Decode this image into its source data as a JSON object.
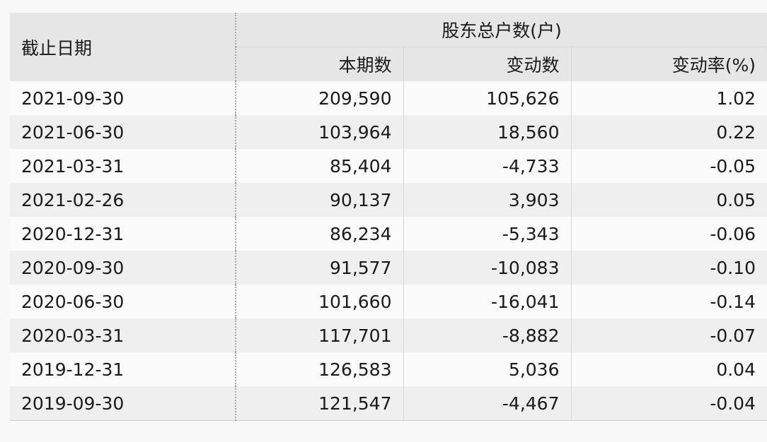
{
  "header": {
    "date": "截止日期",
    "group": "股东总户数(户)",
    "current": "本期数",
    "change": "变动数",
    "rate": "变动率(%)"
  },
  "rows": [
    [
      "2021-09-30",
      "209,590",
      "105,626",
      "1.02"
    ],
    [
      "2021-06-30",
      "103,964",
      "18,560",
      "0.22"
    ],
    [
      "2021-03-31",
      "85,404",
      "-4,733",
      "-0.05"
    ],
    [
      "2021-02-26",
      "90,137",
      "3,903",
      "0.05"
    ],
    [
      "2020-12-31",
      "86,234",
      "-5,343",
      "-0.06"
    ],
    [
      "2020-09-30",
      "91,577",
      "-10,083",
      "-0.10"
    ],
    [
      "2020-06-30",
      "101,660",
      "-16,041",
      "-0.14"
    ],
    [
      "2020-03-31",
      "117,701",
      "-8,882",
      "-0.07"
    ],
    [
      "2019-12-31",
      "126,583",
      "5,036",
      "0.04"
    ],
    [
      "2019-09-30",
      "121,547",
      "-4,467",
      "-0.04"
    ]
  ]
}
